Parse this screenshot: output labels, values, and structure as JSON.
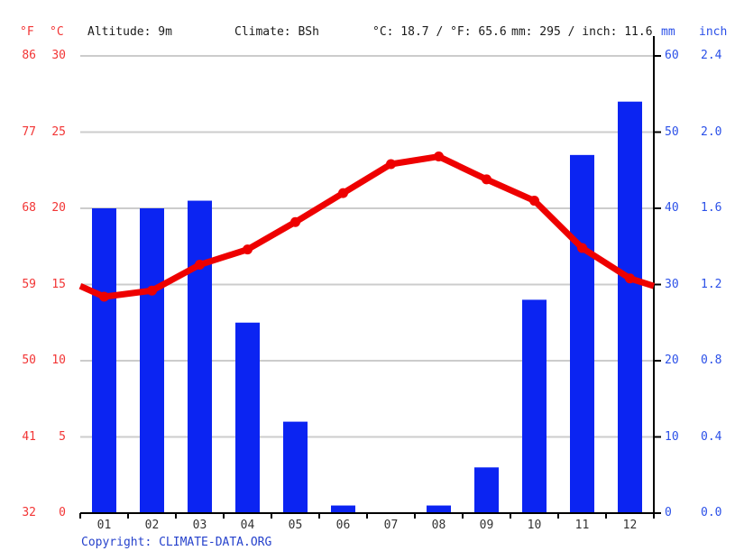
{
  "header": {
    "f_label": "°F",
    "c_label": "°C",
    "altitude": "Altitude: 9m",
    "climate": "Climate: BSh",
    "temp_summary": "°C: 18.7 / °F: 65.6",
    "precip_summary": "mm: 295 / inch: 11.6",
    "mm_label": "mm",
    "inch_label": "inch"
  },
  "axes": {
    "fahrenheit_ticks": [
      "86",
      "77",
      "68",
      "59",
      "50",
      "41",
      "32"
    ],
    "celsius_ticks": [
      "30",
      "25",
      "20",
      "15",
      "10",
      "5",
      "0"
    ],
    "mm_ticks": [
      "60",
      "50",
      "40",
      "30",
      "20",
      "10",
      "0"
    ],
    "inch_ticks": [
      "2.4",
      "2.0",
      "1.6",
      "1.2",
      "0.8",
      "0.4",
      "0.0"
    ]
  },
  "chart_data": {
    "type": "bar+line",
    "categories": [
      "01",
      "02",
      "03",
      "04",
      "05",
      "06",
      "07",
      "08",
      "09",
      "10",
      "11",
      "12"
    ],
    "series": [
      {
        "name": "precipitation_mm",
        "type": "bar",
        "values": [
          40,
          40,
          41,
          25,
          12,
          1,
          0,
          1,
          6,
          28,
          47,
          54
        ]
      },
      {
        "name": "temperature_c",
        "type": "line",
        "values": [
          14.2,
          14.6,
          16.3,
          17.3,
          19.1,
          21.0,
          22.9,
          23.4,
          21.9,
          20.5,
          17.4,
          15.4
        ],
        "edge_left": 14.9,
        "edge_right": 14.9
      }
    ],
    "title": "",
    "xlabel": "",
    "ylabel_left": "°C / °F",
    "ylabel_right": "mm / inch",
    "ylim_c": [
      0,
      30
    ],
    "ylim_mm": [
      0,
      60
    ],
    "grid": true,
    "legend_position": "none",
    "annual_mean_c": 18.7,
    "annual_mean_f": 65.6,
    "annual_precip_mm": 295,
    "annual_precip_inch": 11.6
  },
  "footer": {
    "copyright_prefix": "Copyright: ",
    "link_text": "CLIMATE-DATA.ORG"
  },
  "colors": {
    "bar": "#0b24f2",
    "line": "#ee0000",
    "red_text": "#f23535",
    "blue_text": "#2b50e8",
    "grid": "#cccccc",
    "axis": "#000000",
    "month_text": "#333333",
    "copyright": "#2642cc"
  }
}
